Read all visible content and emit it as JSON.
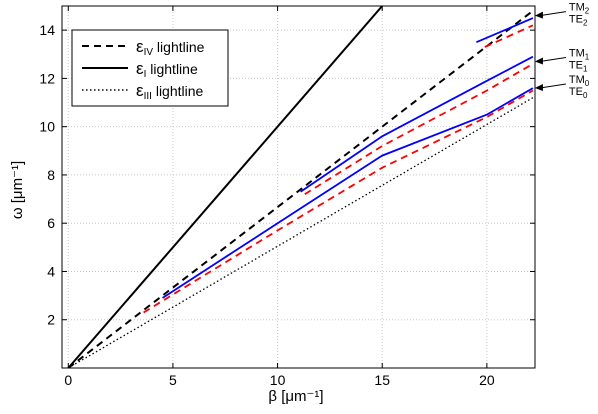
{
  "chart_data": {
    "type": "line",
    "xlabel": "β [μm⁻¹]",
    "ylabel": "ω [μm⁻¹]",
    "xlim": [
      -0.3,
      22.3
    ],
    "ylim": [
      0,
      15
    ],
    "x_ticks": [
      {
        "value": 0,
        "label": "0"
      },
      {
        "value": 5,
        "label": "5"
      },
      {
        "value": 10,
        "label": "10"
      },
      {
        "value": 15,
        "label": "15"
      },
      {
        "value": 20,
        "label": "20"
      }
    ],
    "y_ticks": [
      {
        "value": 2,
        "label": "2"
      },
      {
        "value": 4,
        "label": "4"
      },
      {
        "value": 6,
        "label": "6"
      },
      {
        "value": 8,
        "label": "8"
      },
      {
        "value": 10,
        "label": "10"
      },
      {
        "value": 12,
        "label": "12"
      },
      {
        "value": 14,
        "label": "14"
      }
    ],
    "grid": true,
    "legend_position": "top-left",
    "legend": [
      {
        "main": "ε",
        "sub": "IV",
        "suffix": " lightline",
        "style": "dashed",
        "color": "#000000"
      },
      {
        "main": "ε",
        "sub": "I",
        "suffix": "   lightline",
        "style": "solid",
        "color": "#000000"
      },
      {
        "main": "ε",
        "sub": "III",
        "suffix": " lightline",
        "style": "dotted",
        "color": "#000000"
      }
    ],
    "series": [
      {
        "name": "ε_IV lightline",
        "style": "dashed",
        "color": "#000000",
        "points": [
          [
            0,
            0
          ],
          [
            22.2,
            14.8
          ]
        ]
      },
      {
        "name": "ε_I lightline",
        "style": "solid",
        "color": "#000000",
        "points": [
          [
            0,
            0
          ],
          [
            15.0,
            15.0
          ]
        ]
      },
      {
        "name": "ε_III lightline",
        "style": "dotted",
        "color": "#000000",
        "points": [
          [
            0,
            0
          ],
          [
            22.2,
            11.2
          ]
        ]
      },
      {
        "style": "solid",
        "color": "#0000ff",
        "points": [
          [
            4.5,
            2.9
          ],
          [
            10,
            6.0
          ],
          [
            15,
            8.8
          ],
          [
            20,
            10.5
          ],
          [
            22.2,
            11.6
          ]
        ]
      },
      {
        "style": "dashed",
        "color": "#ff0000",
        "points": [
          [
            3.6,
            2.3
          ],
          [
            10,
            5.7
          ],
          [
            15,
            8.3
          ],
          [
            20,
            10.4
          ],
          [
            22.2,
            11.5
          ]
        ]
      },
      {
        "style": "solid",
        "color": "#0000ff",
        "points": [
          [
            11.1,
            7.3
          ],
          [
            15,
            9.6
          ],
          [
            20,
            11.9
          ],
          [
            22.2,
            12.9
          ]
        ]
      },
      {
        "style": "dashed",
        "color": "#ff0000",
        "points": [
          [
            11.3,
            7.2
          ],
          [
            15,
            9.2
          ],
          [
            20,
            11.5
          ],
          [
            22.2,
            12.6
          ]
        ]
      },
      {
        "style": "solid",
        "color": "#0000ff",
        "points": [
          [
            19.5,
            13.5
          ],
          [
            22.2,
            14.5
          ]
        ]
      },
      {
        "style": "dashed",
        "color": "#ff0000",
        "points": [
          [
            19.9,
            13.3
          ],
          [
            22.2,
            14.2
          ]
        ]
      }
    ],
    "annotations": [
      {
        "lines": [
          {
            "t": "TM",
            "sub": "2"
          },
          {
            "t": "TE",
            "sub": "2"
          }
        ],
        "x_data": 22.2,
        "y_data": 14.6
      },
      {
        "lines": [
          {
            "t": "TM",
            "sub": "1"
          },
          {
            "t": "TE",
            "sub": "1"
          }
        ],
        "x_data": 22.2,
        "y_data": 12.7
      },
      {
        "lines": [
          {
            "t": "TM",
            "sub": "0"
          },
          {
            "t": "TE",
            "sub": "0"
          }
        ],
        "x_data": 22.2,
        "y_data": 11.6
      }
    ]
  }
}
